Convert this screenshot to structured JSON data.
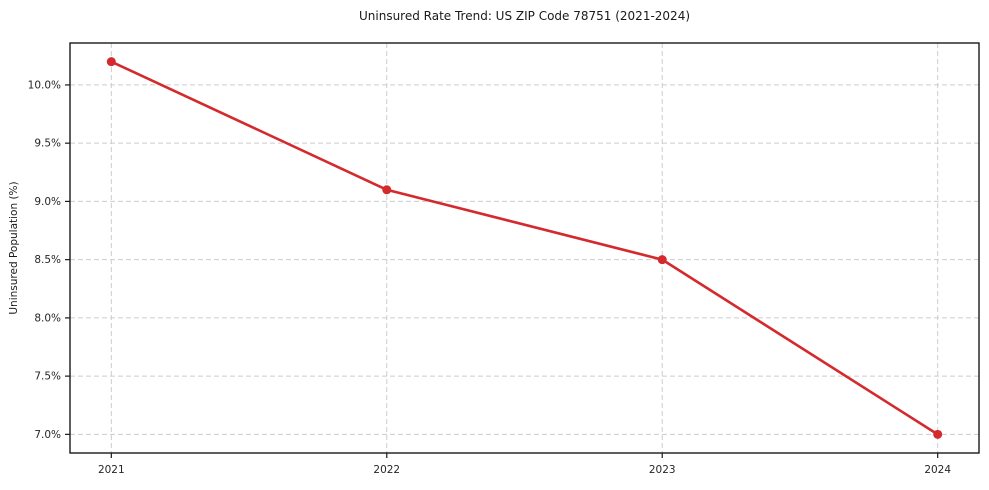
{
  "chart_data": {
    "type": "line",
    "title": "Uninsured Rate Trend: US ZIP Code 78751 (2021-2024)",
    "ylabel": "Uninsured Population (%)",
    "xlabel": "",
    "x": [
      2021,
      2022,
      2023,
      2024
    ],
    "x_tick_labels": [
      "2021",
      "2022",
      "2023",
      "2024"
    ],
    "series": [
      {
        "name": "Uninsured Rate",
        "values": [
          10.2,
          9.1,
          8.5,
          7.0
        ]
      }
    ],
    "y_ticks": [
      7.0,
      7.5,
      8.0,
      8.5,
      9.0,
      9.5,
      10.0
    ],
    "y_tick_labels": [
      "7.0%",
      "7.5%",
      "8.0%",
      "8.5%",
      "9.0%",
      "9.5%",
      "10.0%"
    ],
    "ylim": [
      6.84,
      10.36
    ],
    "xlim": [
      2020.85,
      2024.15
    ],
    "grid": true,
    "legend": "none",
    "colors": {
      "line": "#d42a2e",
      "marker": "#d42a2e",
      "grid": "#cccccc",
      "spine": "#1a1a1a",
      "tick": "#1a1a1a",
      "background": "#ffffff"
    }
  }
}
